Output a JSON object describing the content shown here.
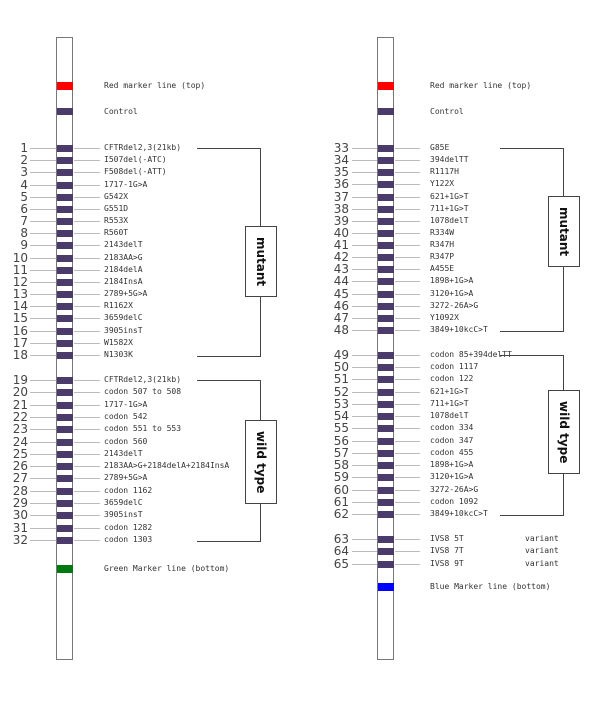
{
  "colors": {
    "band": "#4b3b6b",
    "red": "#ff0000",
    "green": "#007a10",
    "blue": "#0000ff"
  },
  "strips": [
    {
      "top_marker": "Red marker line (top)",
      "control": "Control",
      "bottom_marker": "Green Marker line (bottom)",
      "bottom_color": "green",
      "groups": [
        {
          "label": "mutant",
          "rows": [
            [
              1,
              "CFTRdel2,3(21kb)"
            ],
            [
              2,
              "I507del(-ATC)"
            ],
            [
              3,
              "F508del(-ATT)"
            ],
            [
              4,
              "1717-1G>A"
            ],
            [
              5,
              "G542X"
            ],
            [
              6,
              "G551D"
            ],
            [
              7,
              "R553X"
            ],
            [
              8,
              "R560T"
            ],
            [
              9,
              "2143delT"
            ],
            [
              10,
              "2183AA>G"
            ],
            [
              11,
              "2184delA"
            ],
            [
              12,
              "2184InsA"
            ],
            [
              13,
              "2789+5G>A"
            ],
            [
              14,
              "R1162X"
            ],
            [
              15,
              "3659delC"
            ],
            [
              16,
              "3905insT"
            ],
            [
              17,
              "W1582X"
            ],
            [
              18,
              "N1303K"
            ]
          ]
        },
        {
          "label": "wild type",
          "rows": [
            [
              19,
              "CFTRdel2,3(21kb)"
            ],
            [
              20,
              "codon 507 to 508"
            ],
            [
              21,
              "1717-1G>A"
            ],
            [
              22,
              "codon 542"
            ],
            [
              23,
              "codon 551 to 553"
            ],
            [
              24,
              "codon 560"
            ],
            [
              25,
              "2143delT"
            ],
            [
              26,
              "2183AA>G+2184delA+2184InsA"
            ],
            [
              27,
              "2789+5G>A"
            ],
            [
              28,
              "codon 1162"
            ],
            [
              29,
              "3659delC"
            ],
            [
              30,
              "3905insT"
            ],
            [
              31,
              "codon 1282"
            ],
            [
              32,
              "codon 1303"
            ]
          ]
        }
      ],
      "variants": []
    },
    {
      "top_marker": "Red marker line (top)",
      "control": "Control",
      "bottom_marker": "Blue Marker line (bottom)",
      "bottom_color": "blue",
      "groups": [
        {
          "label": "mutant",
          "rows": [
            [
              33,
              "G85E"
            ],
            [
              34,
              "394delTT"
            ],
            [
              35,
              "R1117H"
            ],
            [
              36,
              "Y122X"
            ],
            [
              37,
              "621+1G>T"
            ],
            [
              38,
              "711+1G>T"
            ],
            [
              39,
              "1078delT"
            ],
            [
              40,
              "R334W"
            ],
            [
              41,
              "R347H"
            ],
            [
              42,
              "R347P"
            ],
            [
              43,
              "A455E"
            ],
            [
              44,
              "1898+1G>A"
            ],
            [
              45,
              "3120+1G>A"
            ],
            [
              46,
              "3272-26A>G"
            ],
            [
              47,
              "Y1092X"
            ],
            [
              48,
              "3849+10kcC>T"
            ]
          ]
        },
        {
          "label": "wild type",
          "rows": [
            [
              49,
              "codon 85+394delTT"
            ],
            [
              50,
              "codon 1117"
            ],
            [
              51,
              "codon 122"
            ],
            [
              52,
              "621+1G>T"
            ],
            [
              53,
              "711+1G>T"
            ],
            [
              54,
              "1078delT"
            ],
            [
              55,
              "codon 334"
            ],
            [
              56,
              "codon 347"
            ],
            [
              57,
              "codon 455"
            ],
            [
              58,
              "1898+1G>A"
            ],
            [
              59,
              "3120+1G>A"
            ],
            [
              60,
              "3272-26A>G"
            ],
            [
              61,
              "codon 1092"
            ],
            [
              62,
              "3849+10kcC>T"
            ]
          ]
        }
      ],
      "variants": [
        [
          63,
          "IVS8 5T",
          "variant"
        ],
        [
          64,
          "IVS8 7T",
          "variant"
        ],
        [
          65,
          "IVS8 9T",
          "variant"
        ]
      ]
    }
  ]
}
